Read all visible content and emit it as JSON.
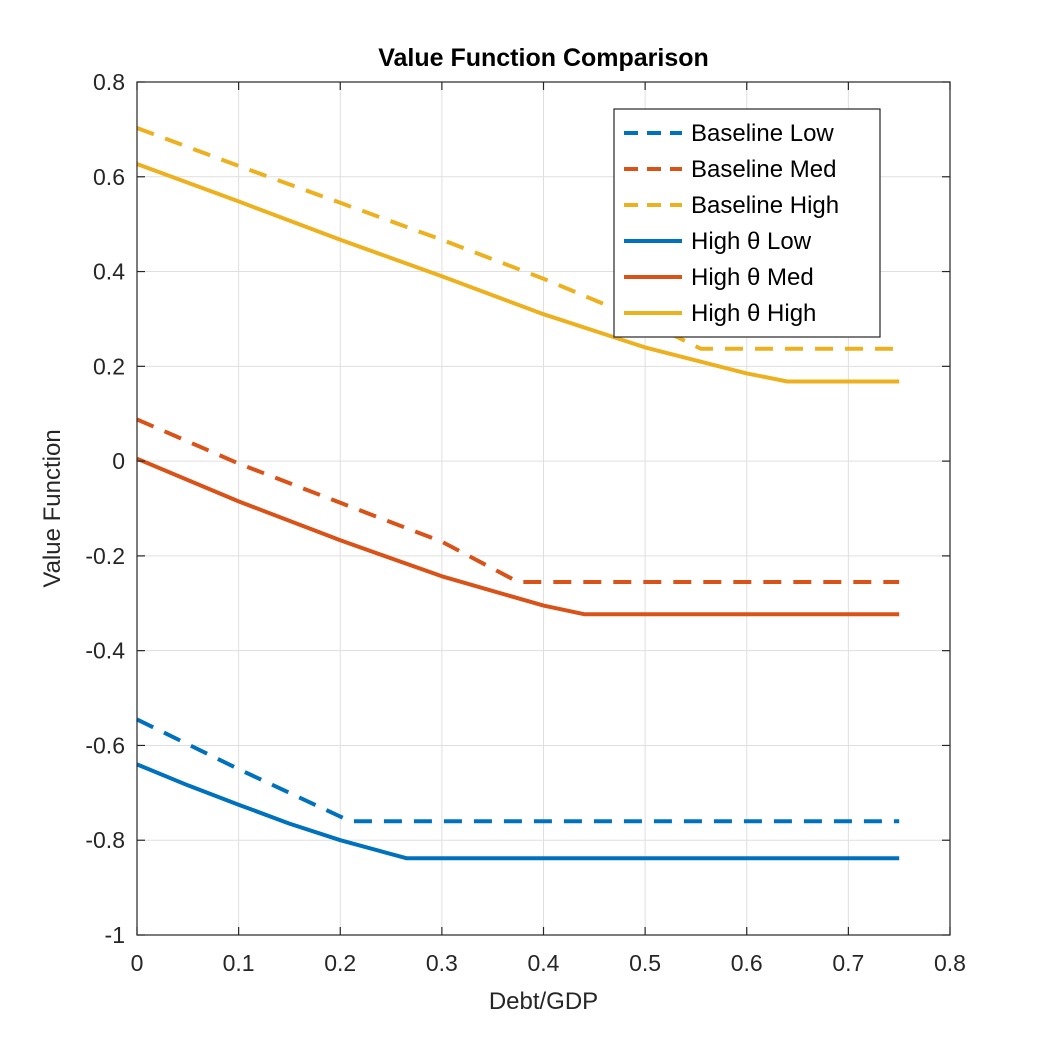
{
  "chart_data": {
    "type": "line",
    "title": "Value Function Comparison",
    "xlabel": "Debt/GDP",
    "ylabel": "Value Function",
    "xlim": [
      0,
      0.8
    ],
    "ylim": [
      -1,
      0.8
    ],
    "xticks": [
      "0",
      "0.1",
      "0.2",
      "0.3",
      "0.4",
      "0.5",
      "0.6",
      "0.7",
      "0.8"
    ],
    "yticks": [
      "-1",
      "-0.8",
      "-0.6",
      "-0.4",
      "-0.2",
      "0",
      "0.2",
      "0.4",
      "0.6",
      "0.8"
    ],
    "grid": true,
    "legend_position": "top-right",
    "series": [
      {
        "name": "Baseline Low",
        "color": "#0072BD",
        "style": "dashed",
        "points": [
          [
            0,
            -0.545
          ],
          [
            0.1,
            -0.65
          ],
          [
            0.21,
            -0.76
          ],
          [
            0.75,
            -0.76
          ]
        ]
      },
      {
        "name": "Baseline Med",
        "color": "#D95319",
        "style": "dashed",
        "points": [
          [
            0,
            0.088
          ],
          [
            0.1,
            -0.005
          ],
          [
            0.2,
            -0.088
          ],
          [
            0.3,
            -0.17
          ],
          [
            0.375,
            -0.255
          ],
          [
            0.75,
            -0.255
          ]
        ]
      },
      {
        "name": "Baseline High",
        "color": "#EDB120",
        "style": "dashed",
        "points": [
          [
            0,
            0.703
          ],
          [
            0.1,
            0.623
          ],
          [
            0.2,
            0.545
          ],
          [
            0.3,
            0.467
          ],
          [
            0.4,
            0.385
          ],
          [
            0.5,
            0.295
          ],
          [
            0.555,
            0.237
          ],
          [
            0.75,
            0.237
          ]
        ]
      },
      {
        "name": "High θ Low",
        "color": "#0072BD",
        "style": "solid",
        "points": [
          [
            0,
            -0.64
          ],
          [
            0.05,
            -0.684
          ],
          [
            0.1,
            -0.725
          ],
          [
            0.15,
            -0.765
          ],
          [
            0.2,
            -0.8
          ],
          [
            0.265,
            -0.838
          ],
          [
            0.75,
            -0.838
          ]
        ]
      },
      {
        "name": "High θ Med",
        "color": "#D95319",
        "style": "solid",
        "points": [
          [
            0,
            0.005
          ],
          [
            0.1,
            -0.085
          ],
          [
            0.2,
            -0.167
          ],
          [
            0.3,
            -0.243
          ],
          [
            0.4,
            -0.305
          ],
          [
            0.44,
            -0.323
          ],
          [
            0.75,
            -0.323
          ]
        ]
      },
      {
        "name": "High θ High",
        "color": "#EDB120",
        "style": "solid",
        "points": [
          [
            0,
            0.627
          ],
          [
            0.1,
            0.548
          ],
          [
            0.2,
            0.467
          ],
          [
            0.3,
            0.39
          ],
          [
            0.4,
            0.31
          ],
          [
            0.5,
            0.24
          ],
          [
            0.6,
            0.185
          ],
          [
            0.64,
            0.168
          ],
          [
            0.75,
            0.168
          ]
        ]
      }
    ]
  }
}
